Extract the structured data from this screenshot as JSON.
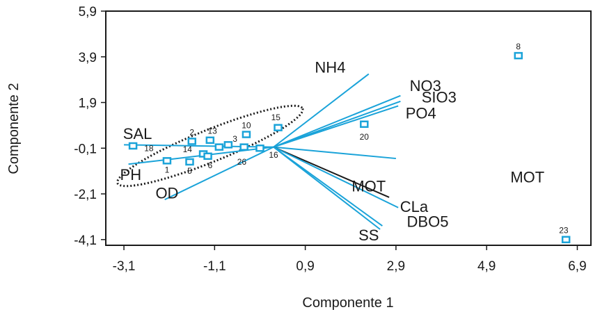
{
  "chart_data": {
    "type": "scatter",
    "title": "",
    "xlabel": "Componente 1",
    "ylabel": "Componente 2",
    "xlim": [
      -3.5,
      7.2
    ],
    "ylim": [
      -4.35,
      5.9
    ],
    "x_ticks": [
      -3.1,
      -1.1,
      0.9,
      2.9,
      4.9,
      6.9
    ],
    "x_tick_labels": [
      "-3,1",
      "-1,1",
      "0,9",
      "2,9",
      "4,9",
      "6,9"
    ],
    "y_ticks": [
      -4.1,
      -2.1,
      -0.1,
      1.9,
      3.9,
      5.9
    ],
    "y_tick_labels": [
      "-4,1",
      "-2,1",
      "-0,1",
      "1,9",
      "3,9",
      "5,9"
    ],
    "grid": false,
    "colors": {
      "points": "#1aa3d9",
      "vectors": "#1aa3d9",
      "vector_mot": "#1a1a1a",
      "axes": "#1a1a1a"
    },
    "origin": [
      0.2,
      -0.05
    ],
    "vectors": [
      {
        "label": "SAL",
        "end": [
          -3.1,
          0.05
        ],
        "color": "#1aa3d9",
        "label_pos": [
          -2.8,
          0.55
        ]
      },
      {
        "label": "PH",
        "end": [
          -3.0,
          -0.8
        ],
        "color": "#1aa3d9",
        "label_pos": [
          -2.95,
          -1.25
        ]
      },
      {
        "label": "OD",
        "end": [
          -2.2,
          -2.35
        ],
        "color": "#1aa3d9",
        "label_pos": [
          -2.15,
          -2.05
        ]
      },
      {
        "label": "NH4",
        "end": [
          2.3,
          3.15
        ],
        "color": "#1aa3d9",
        "label_pos": [
          1.45,
          3.45
        ]
      },
      {
        "label": "NO3",
        "end": [
          3.0,
          2.2
        ],
        "color": "#1aa3d9",
        "label_pos": [
          3.55,
          2.65
        ]
      },
      {
        "label": "SIO3",
        "end": [
          3.0,
          1.95
        ],
        "color": "#1aa3d9",
        "label_pos": [
          3.85,
          2.15
        ]
      },
      {
        "label": "PO4",
        "end": [
          2.95,
          1.75
        ],
        "color": "#1aa3d9",
        "label_pos": [
          3.45,
          1.45
        ]
      },
      {
        "label": "",
        "end": [
          2.9,
          -0.55
        ],
        "color": "#1aa3d9"
      },
      {
        "label": "MOT",
        "end": [
          2.75,
          -2.25
        ],
        "color": "#1a1a1a",
        "label_pos": [
          2.3,
          -1.75
        ]
      },
      {
        "label": "CLa",
        "end": [
          2.95,
          -2.7
        ],
        "color": "#1aa3d9",
        "label_pos": [
          3.3,
          -2.65
        ]
      },
      {
        "label": "DBO5",
        "end": [
          2.6,
          -3.5
        ],
        "color": "#1aa3d9",
        "label_pos": [
          3.6,
          -3.3
        ]
      },
      {
        "label": "SS",
        "end": [
          2.55,
          -3.65
        ],
        "color": "#1aa3d9",
        "label_pos": [
          2.3,
          -3.9
        ]
      }
    ],
    "free_labels": [
      {
        "text": "MOT",
        "pos": [
          5.8,
          -1.35
        ]
      }
    ],
    "points": [
      {
        "label": "8",
        "x": 5.6,
        "y": 3.95,
        "label_pos": [
          5.6,
          4.35
        ]
      },
      {
        "label": "23",
        "x": 6.65,
        "y": -4.1,
        "label_pos": [
          6.6,
          -3.7
        ]
      },
      {
        "label": "20",
        "x": 2.2,
        "y": 0.95,
        "label_pos": [
          2.2,
          0.4
        ]
      },
      {
        "label": "15",
        "x": 0.3,
        "y": 0.8,
        "label_pos": [
          0.25,
          1.25
        ]
      },
      {
        "label": "10",
        "x": -0.4,
        "y": 0.5,
        "label_pos": [
          -0.4,
          0.9
        ]
      },
      {
        "label": "13",
        "x": -1.2,
        "y": 0.25,
        "label_pos": [
          -1.15,
          0.65
        ]
      },
      {
        "label": "2",
        "x": -1.6,
        "y": 0.2,
        "label_pos": [
          -1.6,
          0.6
        ]
      },
      {
        "label": "3",
        "x": -0.8,
        "y": 0.05,
        "label_pos": [
          -0.65,
          0.3
        ]
      },
      {
        "label": "14",
        "x": -1.35,
        "y": -0.35,
        "label_pos": [
          -1.7,
          -0.15
        ]
      },
      {
        "label": "18",
        "x": -2.9,
        "y": 0.0,
        "label_pos": [
          -2.55,
          -0.1
        ]
      },
      {
        "label": "1",
        "x": -2.15,
        "y": -0.65,
        "label_pos": [
          -2.15,
          -1.05
        ]
      },
      {
        "label": "5",
        "x": -1.65,
        "y": -0.7,
        "label_pos": [
          -1.65,
          -1.1
        ]
      },
      {
        "label": "6",
        "x": -1.25,
        "y": -0.45,
        "label_pos": [
          -1.2,
          -0.85
        ]
      },
      {
        "label": "26",
        "x": -0.45,
        "y": -0.05,
        "label_pos": [
          -0.5,
          -0.7
        ]
      },
      {
        "label": "16",
        "x": -0.1,
        "y": -0.1,
        "label_pos": [
          0.2,
          -0.4
        ]
      },
      {
        "label": "",
        "x": -1.0,
        "y": -0.05
      }
    ],
    "ellipse": {
      "center": [
        -1.2,
        0.0
      ],
      "rx": 2.2,
      "ry": 0.7,
      "angle_deg": 22,
      "style": "dotted"
    }
  }
}
